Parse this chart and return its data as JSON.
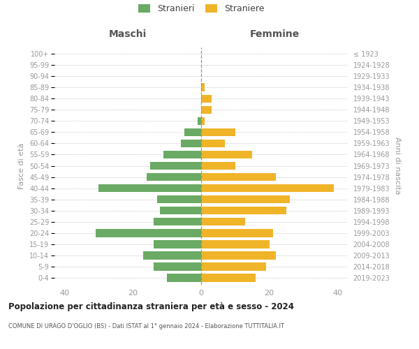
{
  "age_groups": [
    "0-4",
    "5-9",
    "10-14",
    "15-19",
    "20-24",
    "25-29",
    "30-34",
    "35-39",
    "40-44",
    "45-49",
    "50-54",
    "55-59",
    "60-64",
    "65-69",
    "70-74",
    "75-79",
    "80-84",
    "85-89",
    "90-94",
    "95-99",
    "100+"
  ],
  "birth_years": [
    "2019-2023",
    "2014-2018",
    "2009-2013",
    "2004-2008",
    "1999-2003",
    "1994-1998",
    "1989-1993",
    "1984-1988",
    "1979-1983",
    "1974-1978",
    "1969-1973",
    "1964-1968",
    "1959-1963",
    "1954-1958",
    "1949-1953",
    "1944-1948",
    "1939-1943",
    "1934-1938",
    "1929-1933",
    "1924-1928",
    "≤ 1923"
  ],
  "males": [
    10,
    14,
    17,
    14,
    31,
    14,
    12,
    13,
    30,
    16,
    15,
    11,
    6,
    5,
    1,
    0,
    0,
    0,
    0,
    0,
    0
  ],
  "females": [
    16,
    19,
    22,
    20,
    21,
    13,
    25,
    26,
    39,
    22,
    10,
    15,
    7,
    10,
    1,
    3,
    3,
    1,
    0,
    0,
    0
  ],
  "male_color": "#6aaa64",
  "female_color": "#f0b429",
  "male_label": "Stranieri",
  "female_label": "Straniere",
  "title_main": "Popolazione per cittadinanza straniera per età e sesso - 2024",
  "title_sub": "COMUNE DI URAGO D'OGLIO (BS) - Dati ISTAT al 1° gennaio 2024 - Elaborazione TUTTITALIA.IT",
  "header_left": "Maschi",
  "header_right": "Femmine",
  "ylabel_left": "Fasce di età",
  "ylabel_right": "Anni di nascita",
  "xlim": 43,
  "bg_color": "#ffffff",
  "grid_color": "#cccccc",
  "tick_color": "#999999",
  "header_color": "#555555",
  "bar_height": 0.72,
  "center_line_color": "#999966",
  "legend_marker_color_male": "#6aaa64",
  "legend_marker_color_female": "#f0b429"
}
